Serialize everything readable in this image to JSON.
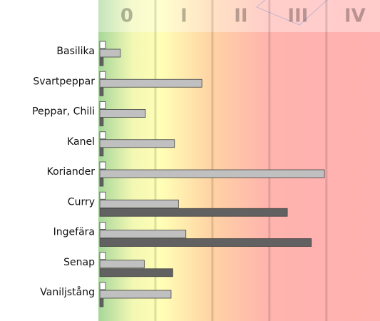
{
  "chart_data": {
    "type": "hbar",
    "zones": [
      "0",
      "I",
      "II",
      "III",
      "IV"
    ],
    "categories": [
      "Basilika",
      "Svartpeppar",
      "Peppar, Chili",
      "Kanel",
      "Koriander",
      "Curry",
      "Ingefära",
      "Senap",
      "Vaniljstång"
    ],
    "series": [
      {
        "color": "#ffffff",
        "values": [
          0.1,
          0.1,
          0.1,
          0.1,
          0.1,
          0.1,
          0.1,
          0.1,
          0.1
        ]
      },
      {
        "color": "#c0c0c0",
        "values": [
          0.36,
          1.79,
          0.8,
          1.31,
          3.94,
          1.38,
          1.51,
          0.78,
          1.25
        ]
      },
      {
        "color": "#616161",
        "values": [
          0.06,
          0.06,
          0.06,
          0.06,
          0.06,
          3.29,
          3.71,
          1.28,
          0.06
        ]
      }
    ],
    "xlim": [
      0,
      4.94
    ]
  }
}
